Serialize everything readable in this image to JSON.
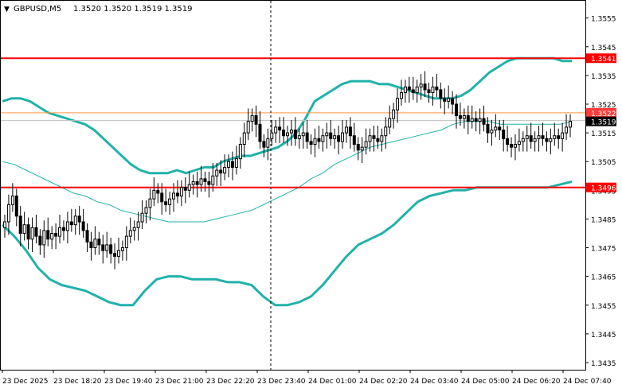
{
  "header": {
    "symbol_label": "GBPUSD,M5",
    "ohlc_label": "1.3520 1.3520 1.3519 1.3519"
  },
  "colors": {
    "background": "#ffffff",
    "frame": "#000000",
    "grid": "#c8c8c8",
    "candle": "#000000",
    "bollinger": "#20b2aa",
    "support_resistance": "#ff0000",
    "bid_line": "#ff9944",
    "bid_label_bg": "#ff3b3b",
    "ask_line": "#c0c0c0",
    "price_tag_bg": "#000000",
    "crosshair": "#000000"
  },
  "chart_data": {
    "type": "candlestick",
    "title": "GBPUSD,M5",
    "ylim": [
      1.343,
      1.356
    ],
    "yticks": [
      "1.3555",
      "1.3545",
      "1.3535",
      "1.3525",
      "1.3515",
      "1.3505",
      "1.3495",
      "1.3485",
      "1.3475",
      "1.3465",
      "1.3455",
      "1.3445",
      "1.3435"
    ],
    "xticks": [
      "23 Dec 2025",
      "23 Dec 18:20",
      "23 Dec 19:40",
      "23 Dec 21:00",
      "23 Dec 22:20",
      "23 Dec 23:40",
      "24 Dec 01:00",
      "24 Dec 02:20",
      "24 Dec 03:40",
      "24 Dec 05:00",
      "24 Dec 06:20",
      "24 Dec 07:40"
    ],
    "grid": false,
    "horizontal_levels": [
      {
        "label": "1.3541",
        "value": 1.3541,
        "style": "resistance"
      },
      {
        "label": "1.3496",
        "value": 1.3496,
        "style": "support"
      }
    ],
    "bid": {
      "label": "1.3522",
      "value": 1.3522
    },
    "last": {
      "label": "1.3519",
      "value": 1.3519
    },
    "crosshair_time": "23 Dec 23:40",
    "closes": [
      1.3484,
      1.349,
      1.3493,
      1.3486,
      1.348,
      1.3483,
      1.3478,
      1.3482,
      1.3479,
      1.3476,
      1.3481,
      1.3478,
      1.348,
      1.3479,
      1.3482,
      1.3481,
      1.3484,
      1.3483,
      1.3486,
      1.3484,
      1.3481,
      1.3477,
      1.3475,
      1.3478,
      1.3476,
      1.3474,
      1.3476,
      1.3473,
      1.3472,
      1.3474,
      1.3475,
      1.3479,
      1.3481,
      1.3482,
      1.3484,
      1.3487,
      1.3489,
      1.3492,
      1.3495,
      1.3494,
      1.3491,
      1.349,
      1.3492,
      1.3494,
      1.3493,
      1.3496,
      1.3495,
      1.3497,
      1.3498,
      1.3497,
      1.3499,
      1.3498,
      1.3497,
      1.35,
      1.3502,
      1.3501,
      1.3503,
      1.3505,
      1.3503,
      1.3506,
      1.3511,
      1.3515,
      1.3519,
      1.3521,
      1.3518,
      1.3512,
      1.351,
      1.3513,
      1.3515,
      1.3517,
      1.3516,
      1.3514,
      1.3515,
      1.3516,
      1.3513,
      1.3514,
      1.3515,
      1.3512,
      1.3511,
      1.3513,
      1.3512,
      1.3514,
      1.3515,
      1.3513,
      1.3514,
      1.3512,
      1.3515,
      1.3517,
      1.3514,
      1.3511,
      1.3509,
      1.351,
      1.3512,
      1.3514,
      1.3513,
      1.3512,
      1.3514,
      1.3517,
      1.352,
      1.3523,
      1.3527,
      1.3529,
      1.3531,
      1.353,
      1.3529,
      1.3531,
      1.3532,
      1.353,
      1.3529,
      1.3531,
      1.353,
      1.3527,
      1.3526,
      1.3527,
      1.3525,
      1.3521,
      1.352,
      1.3521,
      1.3519,
      1.352,
      1.3519,
      1.352,
      1.3518,
      1.3515,
      1.3516,
      1.3517,
      1.3516,
      1.3513,
      1.3511,
      1.351,
      1.3511,
      1.3512,
      1.3513,
      1.3514,
      1.3512,
      1.3513,
      1.3514,
      1.3513,
      1.3512,
      1.3513,
      1.3514,
      1.3513,
      1.3515,
      1.3517,
      1.3519
    ],
    "series": [
      {
        "name": "",
        "values": [
          1.3526,
          1.3527,
          1.3527,
          1.3526,
          1.3524,
          1.3522,
          1.3521,
          1.352,
          1.3519,
          1.3518,
          1.3516,
          1.3513,
          1.351,
          1.3507,
          1.3504,
          1.3502,
          1.3501,
          1.3501,
          1.3501,
          1.3502,
          1.3501,
          1.3502,
          1.3503,
          1.3503,
          1.3505,
          1.3506,
          1.3507,
          1.3507,
          1.3508,
          1.3509,
          1.351,
          1.3512,
          1.3515,
          1.352,
          1.3526,
          1.3528,
          1.353,
          1.3532,
          1.3533,
          1.3533,
          1.3533,
          1.3532,
          1.3532,
          1.3531,
          1.353,
          1.3529,
          1.3528,
          1.3527,
          1.3527,
          1.3527,
          1.3528,
          1.353,
          1.3533,
          1.3536,
          1.3538,
          1.354,
          1.3541,
          1.3541,
          1.3541,
          1.3541,
          1.3541,
          1.354,
          1.354
        ]
      },
      {
        "name": "",
        "values": [
          1.3505,
          1.3504,
          1.3502,
          1.35,
          1.3498,
          1.3496,
          1.3494,
          1.3493,
          1.3491,
          1.349,
          1.3488,
          1.3487,
          1.3486,
          1.3485,
          1.3484,
          1.3484,
          1.3484,
          1.3484,
          1.3485,
          1.3486,
          1.3487,
          1.3488,
          1.349,
          1.3492,
          1.3494,
          1.3496,
          1.3499,
          1.3501,
          1.3504,
          1.3506,
          1.3508,
          1.351,
          1.3511,
          1.3512,
          1.3513,
          1.3514,
          1.3515,
          1.3516,
          1.3518,
          1.3519,
          1.3519,
          1.3519,
          1.3518,
          1.3518,
          1.3518,
          1.3518,
          1.3518,
          1.3518,
          1.3519
        ]
      },
      {
        "name": "",
        "values": [
          1.3483,
          1.3479,
          1.3474,
          1.3468,
          1.3464,
          1.3462,
          1.3461,
          1.346,
          1.3458,
          1.3456,
          1.3455,
          1.3455,
          1.346,
          1.3464,
          1.3465,
          1.3465,
          1.3464,
          1.3464,
          1.3464,
          1.3463,
          1.3463,
          1.3462,
          1.3458,
          1.3455,
          1.3455,
          1.3456,
          1.3458,
          1.3462,
          1.3467,
          1.3472,
          1.3476,
          1.3478,
          1.348,
          1.3483,
          1.3487,
          1.3491,
          1.3493,
          1.3494,
          1.3495,
          1.3495,
          1.3496,
          1.3496,
          1.3496,
          1.3496,
          1.3496,
          1.3496,
          1.3496,
          1.3497,
          1.3498
        ]
      }
    ]
  }
}
